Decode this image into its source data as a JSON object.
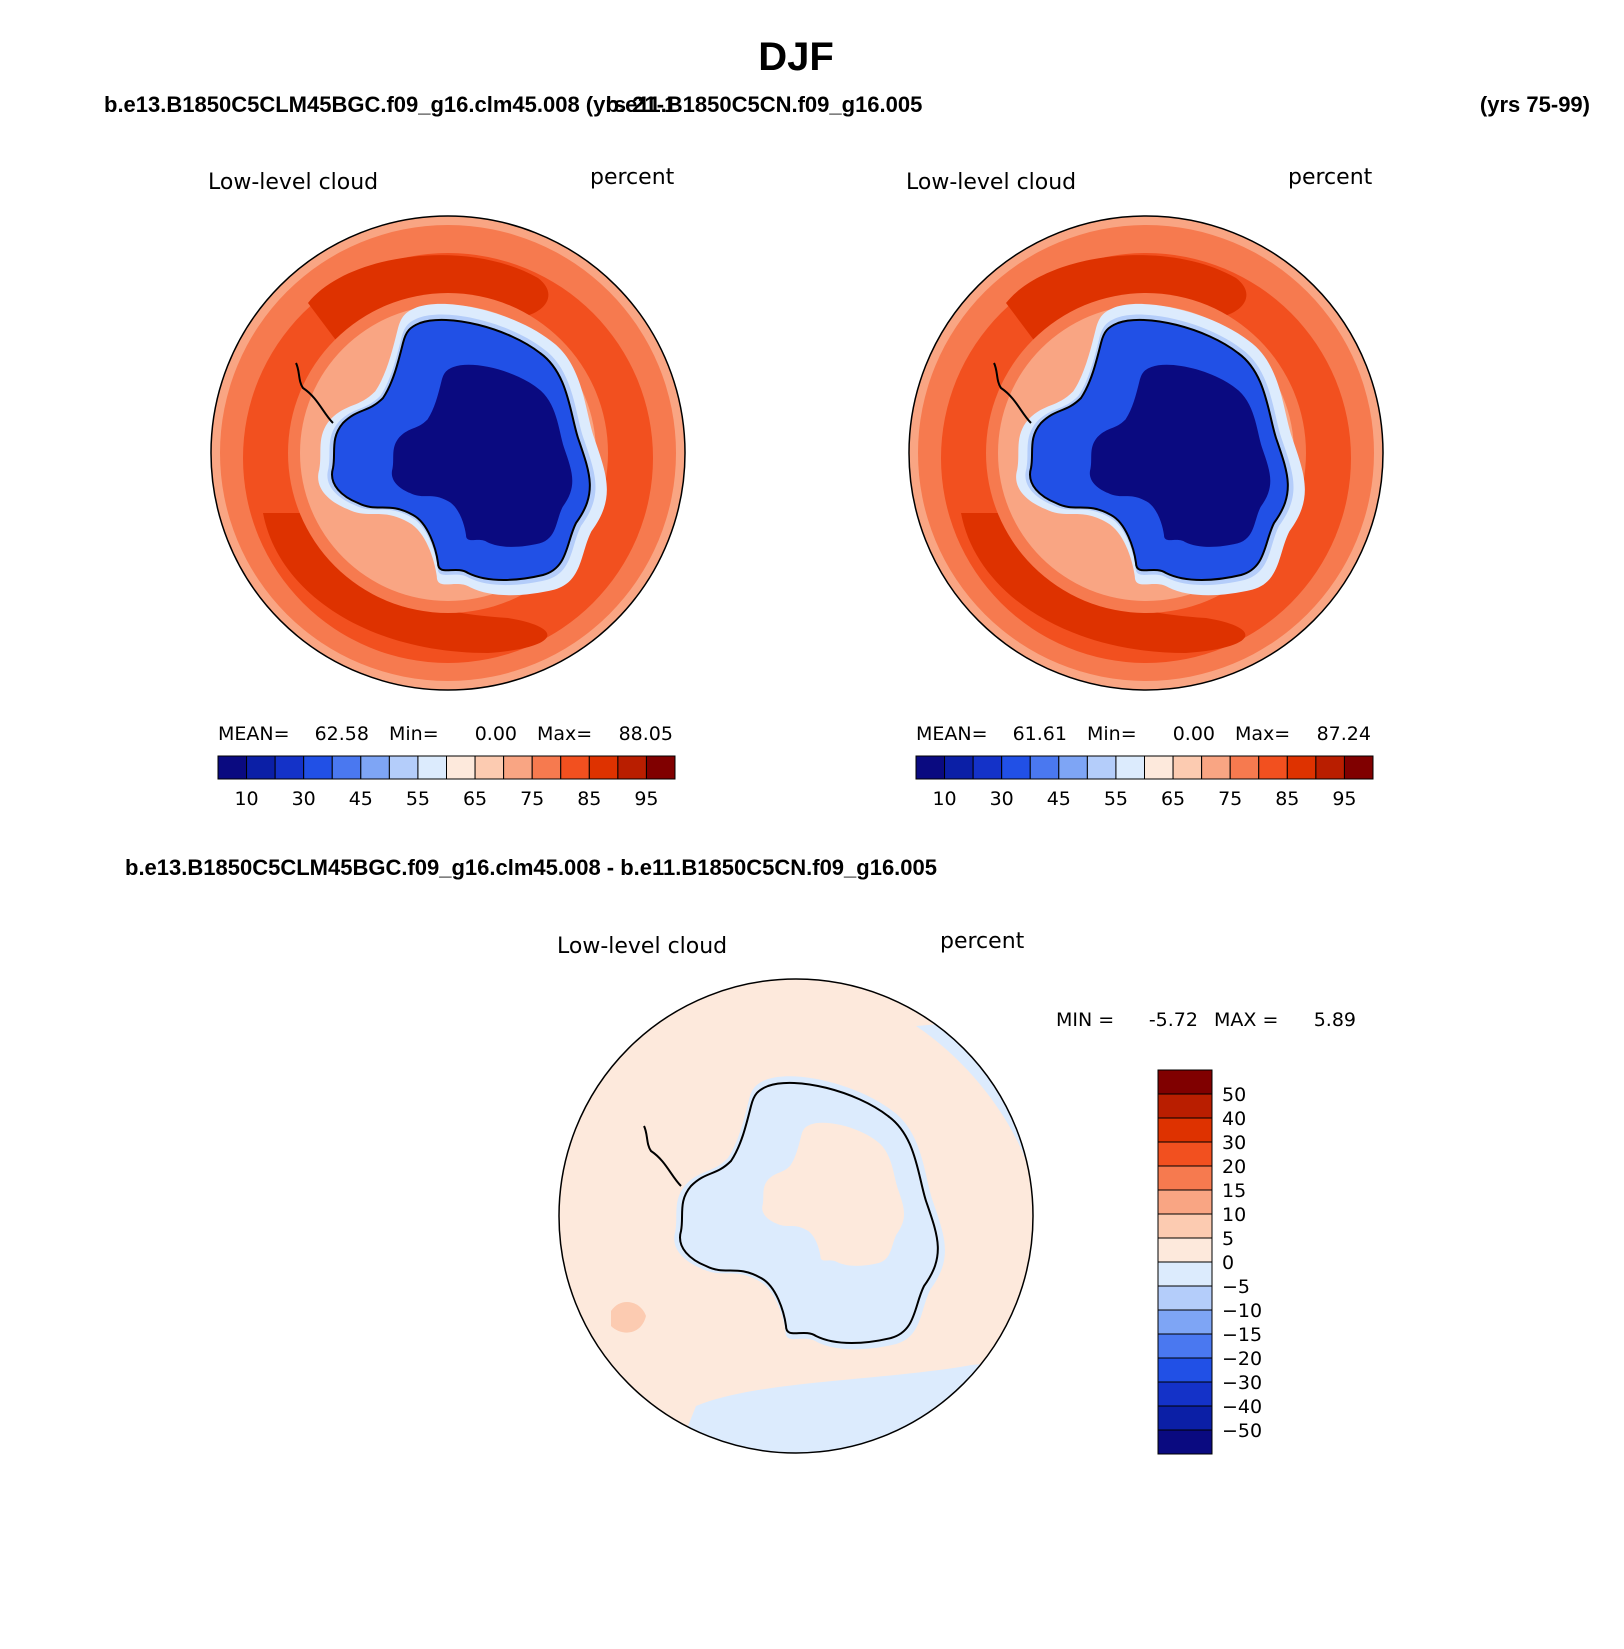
{
  "page": {
    "season_title": "DJF",
    "left_case": "b.e13.B1850C5CLM45BGC.f09_g16.clm45.008 (yrs 21-1",
    "right_case": "b.e11.B1850C5CN.f09_g16.005",
    "right_years": "(yrs 75-99)",
    "diff_case": "b.e13.B1850C5CLM45BGC.f09_g16.clm45.008 - b.e11.B1850C5CN.f09_g16.005"
  },
  "panels": [
    {
      "variable": "Low-level cloud",
      "units": "percent",
      "mean_label": "MEAN=",
      "mean_value": "62.58",
      "min_label": "Min=",
      "min_value": "0.00",
      "max_label": "Max=",
      "max_value": "88.05"
    },
    {
      "variable": "Low-level cloud",
      "units": "percent",
      "mean_label": "MEAN=",
      "mean_value": "61.61",
      "min_label": "Min=",
      "min_value": "0.00",
      "max_label": "Max=",
      "max_value": "87.24"
    }
  ],
  "diff_panel": {
    "variable": "Low-level cloud",
    "units": "percent",
    "min_label": "MIN =",
    "min_value": "-5.72",
    "max_label": "MAX =",
    "max_value": "5.89"
  },
  "colorbar_h": {
    "labels": [
      "10",
      "30",
      "45",
      "55",
      "65",
      "75",
      "85",
      "95"
    ],
    "colors": [
      "#0a0a80",
      "#0b1fa6",
      "#1432c8",
      "#2150e6",
      "#4a78f0",
      "#7ea5f5",
      "#b4cdfa",
      "#dcebfd",
      "#fde9dc",
      "#fccbb1",
      "#f9a583",
      "#f67a4f",
      "#f2501f",
      "#de3200",
      "#b91e00",
      "#800000"
    ]
  },
  "colorbar_v": {
    "labels": [
      "50",
      "40",
      "30",
      "20",
      "15",
      "10",
      "5",
      "0",
      "-5",
      "-10",
      "-15",
      "-20",
      "-30",
      "-40",
      "-50"
    ],
    "colors": [
      "#800000",
      "#b91e00",
      "#de3200",
      "#f2501f",
      "#f67a4f",
      "#f9a583",
      "#fccbb1",
      "#fde9dc",
      "#dcebfd",
      "#b4cdfa",
      "#7ea5f5",
      "#4a78f0",
      "#2150e6",
      "#1432c8",
      "#0b1fa6",
      "#0a0a80"
    ]
  },
  "map_colors": {
    "ocean_high": "#de3200",
    "ocean_mid": "#f2501f",
    "ocean_low": "#f67a4f",
    "ocean_edge": "#f9a583",
    "ice_light": "#b4cdfa",
    "ice_mid": "#2150e6",
    "ice_core": "#0a0a80",
    "diff_pos": "#fde9dc",
    "diff_neg": "#dcebfd",
    "diff_warm": "#fccbb1"
  }
}
